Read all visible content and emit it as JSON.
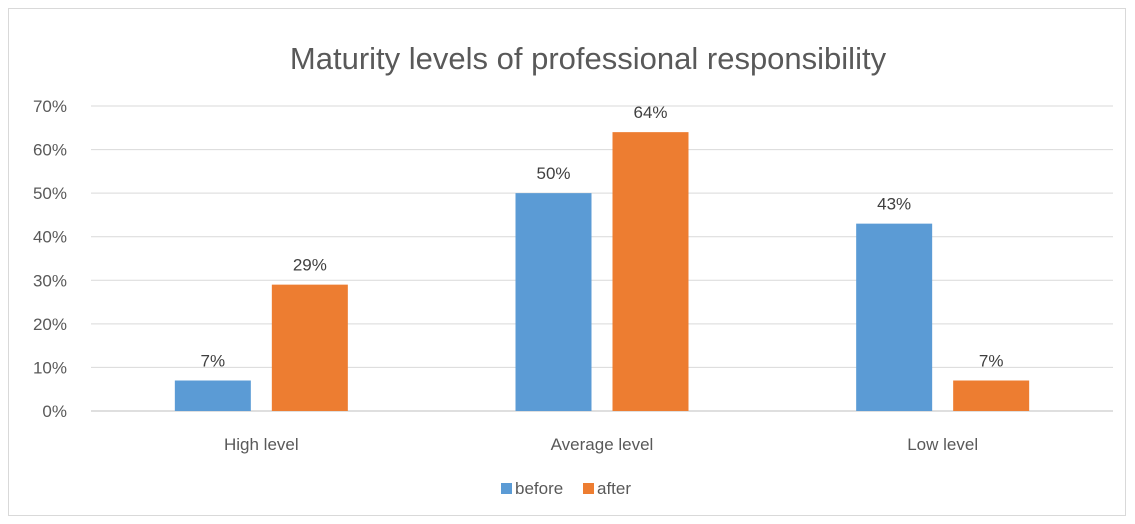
{
  "chart_data": {
    "type": "bar",
    "title": "Maturity levels of professional responsibility",
    "categories": [
      "High level",
      "Average level",
      "Low level"
    ],
    "series": [
      {
        "name": "before",
        "values": [
          7,
          50,
          43
        ],
        "labels": [
          "7%",
          "50%",
          "43%"
        ],
        "color": "#5b9bd5"
      },
      {
        "name": "after",
        "values": [
          29,
          64,
          7
        ],
        "labels": [
          "29%",
          "64%",
          "7%"
        ],
        "color": "#ed7d31"
      }
    ],
    "ylim": [
      0,
      70
    ],
    "yticks": [
      "0%",
      "10%",
      "20%",
      "30%",
      "40%",
      "50%",
      "60%",
      "70%"
    ],
    "grid": true,
    "legend_position": "bottom"
  }
}
